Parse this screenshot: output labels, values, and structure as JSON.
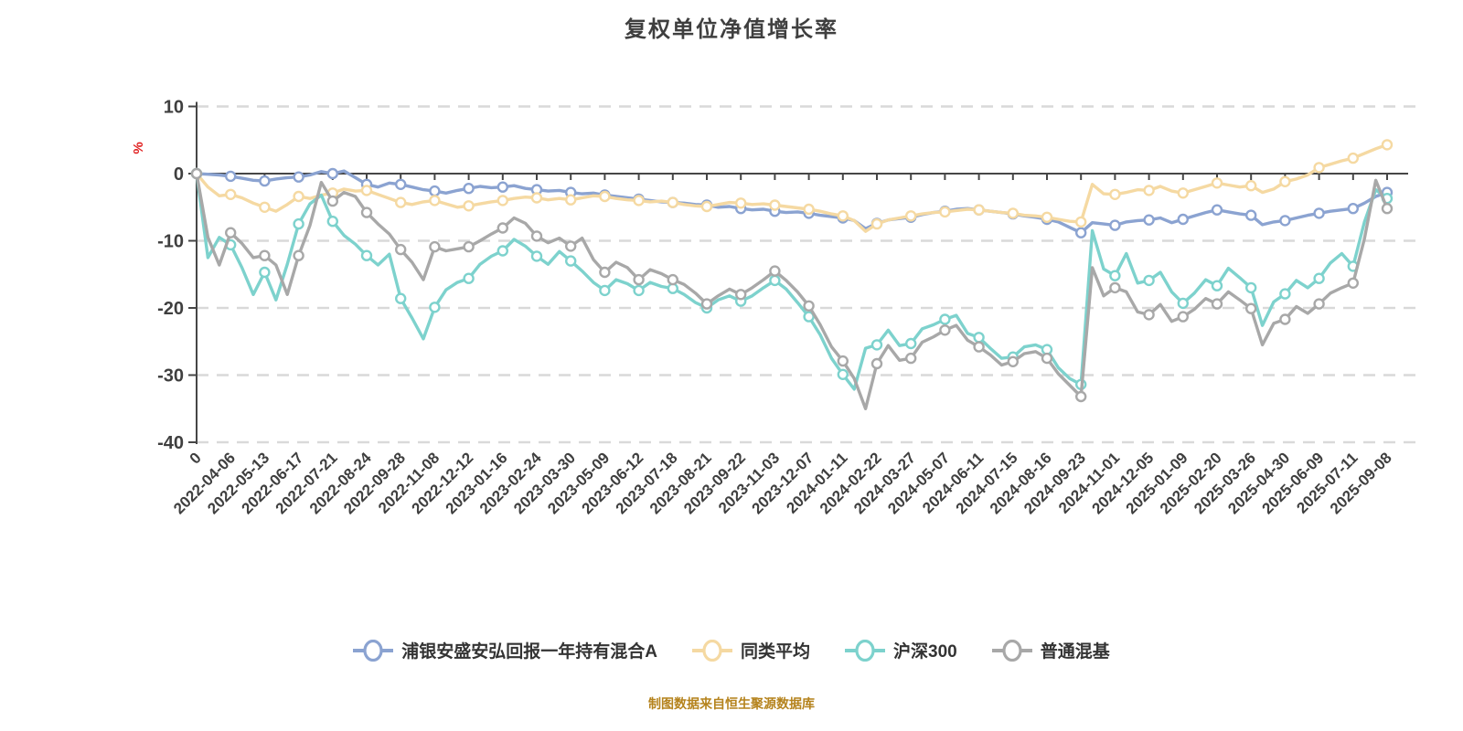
{
  "title": "复权单位净值增长率",
  "footer": "制图数据来自恒生聚源数据库",
  "chart_data": {
    "type": "line",
    "title": "复权单位净值增长率",
    "ylabel": "%",
    "ylabel_color": "#e02020",
    "ylim": [
      -40,
      10
    ],
    "y_ticks": [
      10,
      0,
      -10,
      -20,
      -30,
      -40
    ],
    "grid": "horizontal dashed",
    "grid_color": "#d9d9d9",
    "axis_color": "#464646",
    "tick_label_color": "#3f3f3f",
    "legend_position": "bottom",
    "marker_every": 3,
    "x_labels": [
      "0",
      "2022-04-06",
      "2022-05-13",
      "2022-06-17",
      "2022-07-21",
      "2022-08-24",
      "2022-09-28",
      "2022-11-08",
      "2022-12-12",
      "2023-01-16",
      "2023-02-24",
      "2023-03-30",
      "2023-05-09",
      "2023-06-12",
      "2023-07-18",
      "2023-08-21",
      "2023-09-22",
      "2023-11-03",
      "2023-12-07",
      "2024-01-11",
      "2024-02-22",
      "2024-03-27",
      "2024-05-07",
      "2024-06-11",
      "2024-07-15",
      "2024-08-16",
      "2024-09-23",
      "2024-11-01",
      "2024-12-05",
      "2025-01-09",
      "2025-02-20",
      "2025-03-26",
      "2025-04-30",
      "2025-06-09",
      "2025-07-11",
      "2025-09-08"
    ],
    "series": [
      {
        "name": "浦银安盛安弘回报一年持有混合A",
        "color": "#8ba3d1",
        "values": [
          0,
          -0.1,
          -0.2,
          -0.4,
          -0.7,
          -1.0,
          -1.1,
          -0.8,
          -0.6,
          -0.5,
          -0.2,
          0.3,
          0.0,
          0.4,
          -0.6,
          -1.6,
          -2.0,
          -1.4,
          -1.6,
          -2.0,
          -2.4,
          -2.6,
          -2.9,
          -2.5,
          -2.2,
          -1.9,
          -2.1,
          -2.0,
          -1.8,
          -2.2,
          -2.4,
          -2.6,
          -2.5,
          -2.8,
          -3.0,
          -2.9,
          -3.2,
          -3.4,
          -3.6,
          -3.8,
          -4.0,
          -4.2,
          -4.3,
          -4.4,
          -4.6,
          -4.7,
          -5.0,
          -4.9,
          -5.2,
          -5.4,
          -5.3,
          -5.6,
          -5.8,
          -5.7,
          -5.9,
          -6.2,
          -6.4,
          -6.6,
          -7.0,
          -8.2,
          -7.4,
          -6.9,
          -6.7,
          -6.5,
          -6.1,
          -5.8,
          -5.6,
          -5.3,
          -5.2,
          -5.4,
          -5.6,
          -5.8,
          -6.0,
          -6.3,
          -6.5,
          -6.8,
          -7.2,
          -8.0,
          -8.8,
          -7.3,
          -7.5,
          -7.7,
          -7.2,
          -7.0,
          -6.9,
          -6.6,
          -7.3,
          -6.8,
          -6.3,
          -5.8,
          -5.4,
          -5.7,
          -6.0,
          -6.2,
          -7.6,
          -7.2,
          -7.0,
          -6.6,
          -6.2,
          -5.9,
          -5.6,
          -5.4,
          -5.2,
          -4.4,
          -3.4,
          -2.8
        ]
      },
      {
        "name": "同类平均",
        "color": "#f5d9a2",
        "values": [
          0,
          -2.0,
          -3.3,
          -3.1,
          -3.6,
          -4.4,
          -5.0,
          -5.6,
          -4.6,
          -3.4,
          -3.7,
          -3.2,
          -2.9,
          -2.3,
          -2.6,
          -2.5,
          -3.1,
          -3.7,
          -4.3,
          -4.6,
          -4.2,
          -4.0,
          -4.5,
          -5.0,
          -4.8,
          -4.5,
          -4.2,
          -4.0,
          -3.7,
          -3.5,
          -3.6,
          -3.9,
          -3.7,
          -3.9,
          -3.6,
          -3.3,
          -3.4,
          -3.7,
          -3.9,
          -4.0,
          -4.2,
          -4.1,
          -4.3,
          -4.6,
          -4.8,
          -4.9,
          -4.6,
          -4.3,
          -4.4,
          -4.6,
          -4.5,
          -4.7,
          -4.9,
          -5.1,
          -5.3,
          -5.6,
          -6.0,
          -6.3,
          -7.0,
          -8.6,
          -7.5,
          -6.9,
          -6.6,
          -6.3,
          -6.0,
          -5.8,
          -5.7,
          -5.5,
          -5.3,
          -5.4,
          -5.6,
          -5.8,
          -5.9,
          -6.2,
          -6.3,
          -6.5,
          -6.8,
          -7.1,
          -7.2,
          -1.6,
          -3.0,
          -3.1,
          -2.8,
          -2.4,
          -2.5,
          -1.9,
          -2.6,
          -2.9,
          -2.4,
          -1.9,
          -1.4,
          -1.7,
          -2.0,
          -1.8,
          -2.8,
          -2.3,
          -1.2,
          -0.8,
          -0.2,
          0.9,
          1.4,
          1.9,
          2.3,
          3.0,
          3.7,
          4.3
        ]
      },
      {
        "name": "沪深300",
        "color": "#7dd2cd",
        "values": [
          0,
          -12.5,
          -9.5,
          -10.6,
          -14.0,
          -18.0,
          -14.7,
          -18.8,
          -13.5,
          -7.5,
          -4.5,
          -3.2,
          -7.1,
          -9.2,
          -10.5,
          -12.2,
          -13.6,
          -12.0,
          -18.6,
          -21.5,
          -24.6,
          -19.9,
          -17.3,
          -16.2,
          -15.6,
          -13.5,
          -12.3,
          -11.5,
          -9.8,
          -10.8,
          -12.3,
          -13.5,
          -11.6,
          -13.0,
          -14.5,
          -16.2,
          -17.4,
          -15.8,
          -16.4,
          -17.4,
          -16.2,
          -16.8,
          -17.1,
          -18.0,
          -19.2,
          -20.0,
          -18.8,
          -18.2,
          -19.0,
          -18.2,
          -17.0,
          -15.9,
          -17.2,
          -19.2,
          -21.3,
          -24.0,
          -27.5,
          -29.9,
          -32.1,
          -26.0,
          -25.5,
          -23.3,
          -25.6,
          -25.3,
          -23.1,
          -22.5,
          -21.7,
          -21.1,
          -23.8,
          -24.4,
          -26.0,
          -27.5,
          -27.3,
          -25.8,
          -25.5,
          -26.2,
          -28.9,
          -30.5,
          -31.4,
          -8.5,
          -14.2,
          -15.2,
          -11.9,
          -16.3,
          -15.9,
          -14.7,
          -17.6,
          -19.3,
          -17.8,
          -15.8,
          -16.7,
          -14.1,
          -15.5,
          -17.0,
          -22.6,
          -19.1,
          -17.9,
          -15.9,
          -17.0,
          -15.6,
          -13.3,
          -11.9,
          -13.8,
          -7.2,
          -2.4,
          -3.7
        ]
      },
      {
        "name": "普通混基",
        "color": "#a8a8a8",
        "values": [
          0,
          -9.5,
          -13.6,
          -8.8,
          -10.4,
          -12.5,
          -12.2,
          -13.6,
          -18.0,
          -12.2,
          -7.7,
          -1.3,
          -4.1,
          -2.8,
          -3.4,
          -5.8,
          -7.5,
          -9.0,
          -11.3,
          -13.2,
          -15.8,
          -10.9,
          -11.5,
          -11.2,
          -10.9,
          -10.0,
          -9.0,
          -8.1,
          -6.6,
          -7.4,
          -9.3,
          -10.3,
          -9.6,
          -10.8,
          -9.6,
          -12.8,
          -14.7,
          -13.2,
          -14.0,
          -15.8,
          -14.3,
          -14.9,
          -15.8,
          -16.5,
          -17.8,
          -19.4,
          -18.2,
          -17.2,
          -18.0,
          -17.0,
          -15.8,
          -14.5,
          -15.9,
          -17.6,
          -19.7,
          -22.5,
          -25.8,
          -27.9,
          -30.5,
          -35.0,
          -28.3,
          -25.6,
          -27.8,
          -27.5,
          -25.1,
          -24.3,
          -23.3,
          -22.6,
          -24.8,
          -25.8,
          -27.0,
          -28.5,
          -28.0,
          -26.8,
          -26.5,
          -27.5,
          -29.8,
          -31.5,
          -33.2,
          -14.0,
          -18.2,
          -17.0,
          -17.6,
          -20.6,
          -21.0,
          -19.5,
          -22.0,
          -21.3,
          -20.2,
          -18.6,
          -19.4,
          -17.6,
          -18.8,
          -20.1,
          -25.5,
          -22.3,
          -21.7,
          -19.8,
          -20.8,
          -19.4,
          -17.8,
          -17.0,
          -16.3,
          -9.7,
          -1.0,
          -5.2
        ]
      }
    ]
  }
}
